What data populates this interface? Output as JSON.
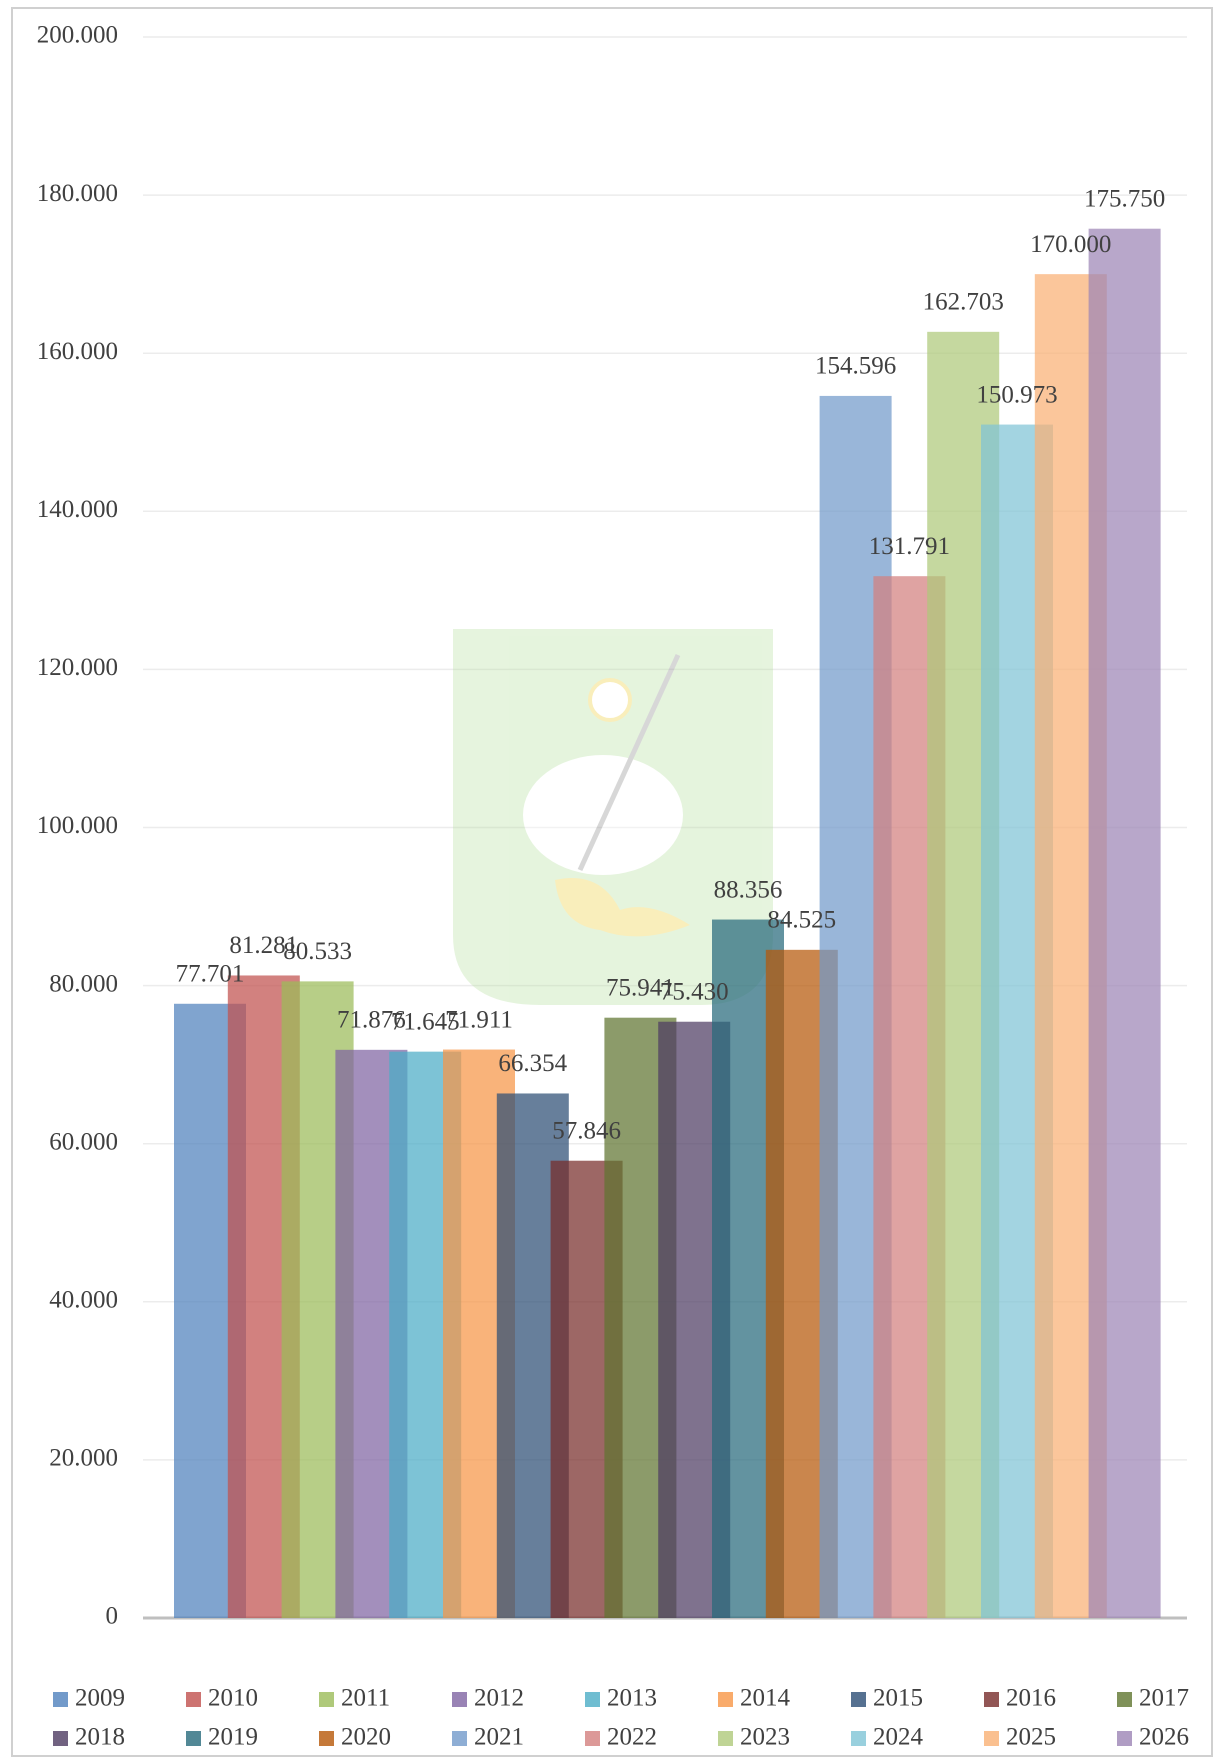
{
  "chart_data": {
    "type": "bar",
    "ylim": [
      0,
      200000
    ],
    "yticks": [
      0,
      {
        "value": 20000,
        "label": "20.000"
      },
      {
        "value": 40000,
        "label": "40.000"
      },
      {
        "value": 60000,
        "label": "60.000"
      },
      {
        "value": 80000,
        "label": "80.000"
      },
      {
        "value": 100000,
        "label": "100.000"
      },
      {
        "value": 120000,
        "label": "120.000"
      },
      {
        "value": 140000,
        "label": "140.000"
      },
      {
        "value": 160000,
        "label": "160.000"
      },
      {
        "value": 180000,
        "label": "180.000"
      },
      {
        "value": 200000,
        "label": "200.000"
      }
    ],
    "grid": true,
    "legend": "bottom",
    "series": [
      {
        "name": "2009",
        "color": "#4f81bd",
        "values": [
          77701
        ],
        "value_labels": [
          "77.701"
        ]
      },
      {
        "name": "2010",
        "color": "#c0504d",
        "values": [
          81281
        ],
        "value_labels": [
          "81.281"
        ]
      },
      {
        "name": "2011",
        "color": "#9bbb59",
        "values": [
          80533
        ],
        "value_labels": [
          "80.533"
        ]
      },
      {
        "name": "2012",
        "color": "#8064a2",
        "values": [
          71876
        ],
        "value_labels": [
          "71.876"
        ]
      },
      {
        "name": "2013",
        "color": "#4bacc6",
        "values": [
          71645
        ],
        "value_labels": [
          "71.645"
        ]
      },
      {
        "name": "2014",
        "color": "#f79646",
        "values": [
          71911
        ],
        "value_labels": [
          "71.911"
        ]
      },
      {
        "name": "2015",
        "color": "#2c4d75",
        "values": [
          66354
        ],
        "value_labels": [
          "66.354"
        ]
      },
      {
        "name": "2016",
        "color": "#772c2a",
        "values": [
          57846
        ],
        "value_labels": [
          "57.846"
        ]
      },
      {
        "name": "2017",
        "color": "#5f7530",
        "values": [
          75941
        ],
        "value_labels": [
          "75.941"
        ]
      },
      {
        "name": "2018",
        "color": "#4d3b62",
        "values": [
          75430
        ],
        "value_labels": [
          "75.430"
        ]
      },
      {
        "name": "2019",
        "color": "#276a7c",
        "values": [
          88356
        ],
        "value_labels": [
          "88.356"
        ]
      },
      {
        "name": "2020",
        "color": "#b65708",
        "values": [
          84525
        ],
        "value_labels": [
          "84.525"
        ]
      },
      {
        "name": "2021",
        "color": "#729aca",
        "values": [
          154596
        ],
        "value_labels": [
          "154.596"
        ]
      },
      {
        "name": "2022",
        "color": "#d3807e",
        "values": [
          131791
        ],
        "value_labels": [
          "131.791"
        ]
      },
      {
        "name": "2023",
        "color": "#afc97a",
        "values": [
          162703
        ],
        "value_labels": [
          "162.703"
        ]
      },
      {
        "name": "2024",
        "color": "#7fc4d6",
        "values": [
          150973
        ],
        "value_labels": [
          "150.973"
        ]
      },
      {
        "name": "2025",
        "color": "#f9b074",
        "values": [
          170000
        ],
        "value_labels": [
          "170.000"
        ]
      },
      {
        "name": "2026",
        "color": "#9c85b5",
        "values": [
          175750
        ],
        "value_labels": [
          "175.750"
        ]
      }
    ]
  }
}
